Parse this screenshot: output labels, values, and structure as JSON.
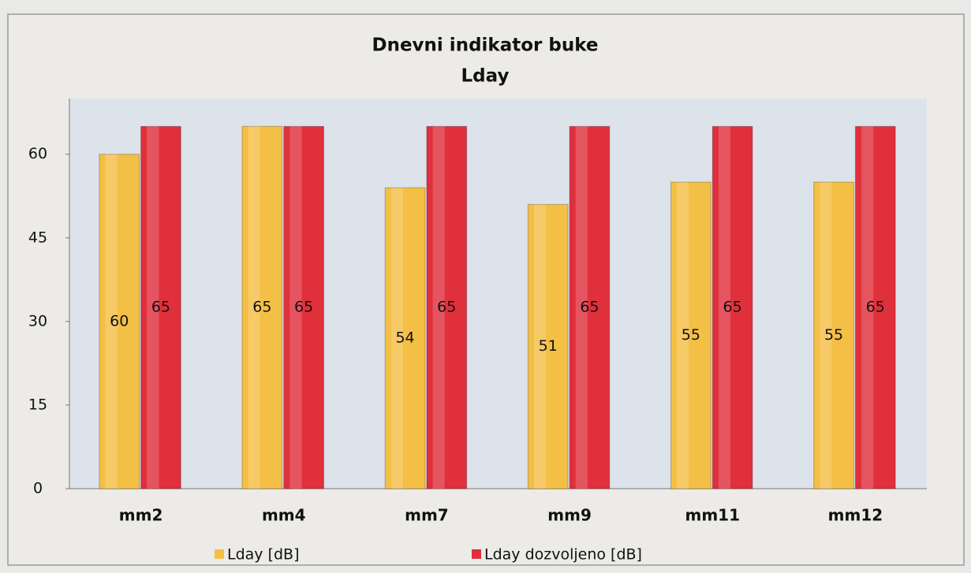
{
  "chart_data": {
    "type": "bar",
    "title": "Dnevni indikator buke",
    "subtitle": "Lday",
    "categories": [
      "mm2",
      "mm4",
      "mm7",
      "mm9",
      "mm11",
      "mm12"
    ],
    "series": [
      {
        "name": "Lday [dB]",
        "color": "#f4bf45",
        "values": [
          60,
          65,
          54,
          51,
          55,
          55
        ]
      },
      {
        "name": "Lday dozvoljeno [dB]",
        "color": "#e0303c",
        "values": [
          65,
          65,
          65,
          65,
          65,
          65
        ]
      }
    ],
    "ylim": [
      0,
      70
    ],
    "yticks": [
      0,
      15,
      30,
      45,
      60
    ],
    "grid": false,
    "legend": "bottom"
  }
}
